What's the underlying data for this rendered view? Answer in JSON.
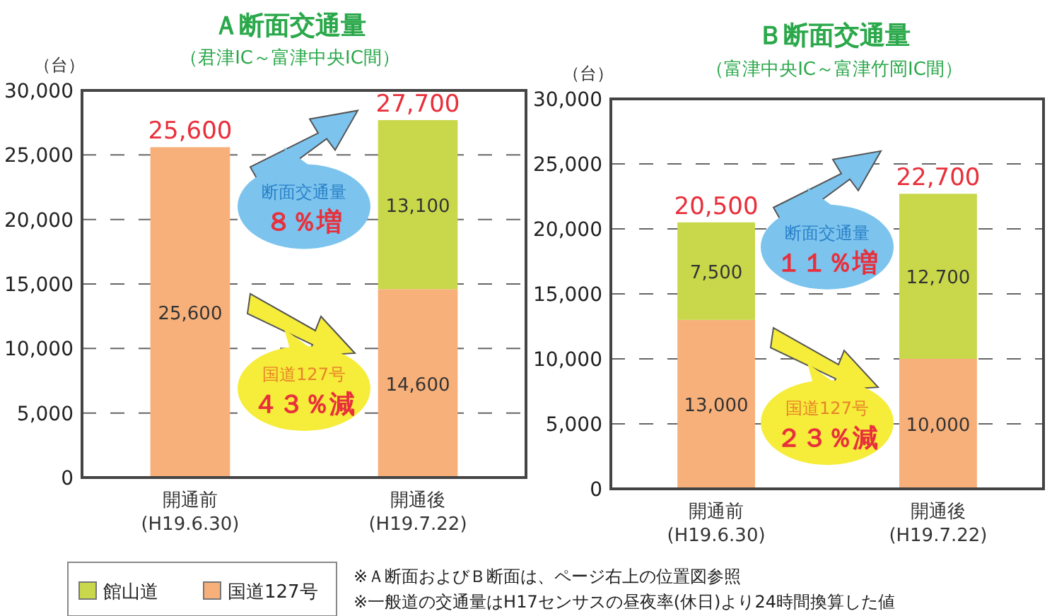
{
  "chart_data": [
    {
      "type": "bar",
      "stacked": true,
      "title": "Ａ断面交通量",
      "subtitle": "（君津IC～富津中央IC間）",
      "ylabel": "（台）",
      "categories": [
        "開通前\n(H19.6.30)",
        "開通後\n(H19.7.22)"
      ],
      "series": [
        {
          "name": "国道127号",
          "color": "#f7b07a",
          "values": [
            25600,
            14600
          ],
          "value_labels": [
            "25,600",
            "14,600"
          ]
        },
        {
          "name": "館山道",
          "color": "#c8d84a",
          "values": [
            null,
            13100
          ],
          "value_labels": [
            null,
            "13,100"
          ]
        }
      ],
      "totals": [
        "25,600",
        "27,700"
      ],
      "ylim": [
        0,
        30000
      ],
      "yticks": [
        0,
        {
          "value": 5000,
          "label": "5,000"
        },
        {
          "value": 10000,
          "label": "10,000"
        },
        {
          "value": 15000,
          "label": "15,000"
        },
        {
          "value": 20000,
          "label": "20,000"
        },
        {
          "value": 25000,
          "label": "25,000"
        },
        {
          "value": 30000,
          "label": "30,000"
        }
      ],
      "grid": "y",
      "legend": "bottom",
      "annotations": [
        "断面交通量",
        "８％増",
        "国道127号",
        "４３％減"
      ]
    },
    {
      "type": "bar",
      "stacked": true,
      "title": "Ｂ断面交通量",
      "subtitle": "（富津中央IC～富津竹岡IC間）",
      "ylabel": "（台）",
      "categories": [
        "開通前\n(H19.6.30)",
        "開通後\n(H19.7.22)"
      ],
      "series": [
        {
          "color": "#f7b07a",
          "values": [
            13000,
            10000
          ],
          "value_labels": [
            "13,000",
            "10,000"
          ]
        },
        {
          "color": "#c8d84a",
          "values": [
            7500,
            12700
          ],
          "value_labels": [
            "7,500",
            "12,700"
          ]
        }
      ],
      "totals": [
        "20,500",
        "22,700"
      ],
      "ylim": [
        0,
        30000
      ],
      "yticks": [
        0,
        {
          "value": 5000,
          "label": "5,000"
        },
        {
          "value": 10000,
          "label": "10,000"
        },
        {
          "value": 15000,
          "label": "15,000"
        },
        {
          "value": 20000,
          "label": "20,000"
        },
        {
          "value": 25000,
          "label": "25,000"
        },
        {
          "value": 30000,
          "label": "30,000"
        }
      ],
      "grid": "y",
      "annotations": [
        "断面交通量",
        "１１％増",
        "国道127号",
        "２３％減",
        "※Ａ断面およびＢ断面は、ページ右上の位置図参照",
        "※一般道の交通量はH17センサスの昼夜率(休日)より24時間換算した値"
      ]
    }
  ]
}
